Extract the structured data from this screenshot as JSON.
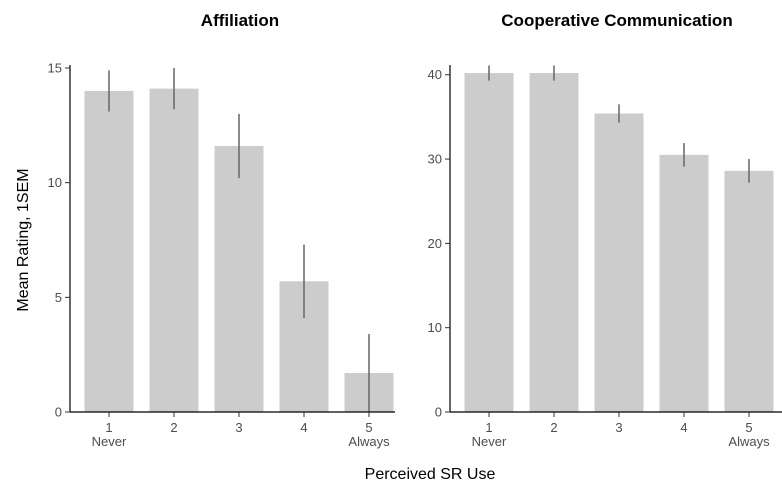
{
  "ylabel": "Mean Rating, 1SEM",
  "xlabel": "Perceived SR Use",
  "chart_data": [
    {
      "type": "bar",
      "title": "Affiliation",
      "categories": [
        "1",
        "2",
        "3",
        "4",
        "5"
      ],
      "category_sublabels": [
        "Never",
        "",
        "",
        "",
        "Always"
      ],
      "values": [
        14.0,
        14.1,
        11.6,
        5.7,
        1.7
      ],
      "error": [
        0.9,
        0.9,
        1.4,
        1.6,
        1.7
      ],
      "ylim": [
        0,
        15
      ],
      "yticks": [
        0,
        5,
        10,
        15
      ],
      "bar_color": "#cccccc",
      "error_color": "#666666",
      "grid": false
    },
    {
      "type": "bar",
      "title": "Cooperative Communication",
      "categories": [
        "1",
        "2",
        "3",
        "4",
        "5"
      ],
      "category_sublabels": [
        "Never",
        "",
        "",
        "",
        "Always"
      ],
      "values": [
        40.2,
        40.2,
        35.4,
        30.5,
        28.6
      ],
      "error": [
        0.9,
        0.9,
        1.1,
        1.4,
        1.4
      ],
      "ylim": [
        0,
        40.8
      ],
      "yticks": [
        0,
        10,
        20,
        30,
        40
      ],
      "bar_color": "#cccccc",
      "error_color": "#666666",
      "grid": false
    }
  ]
}
